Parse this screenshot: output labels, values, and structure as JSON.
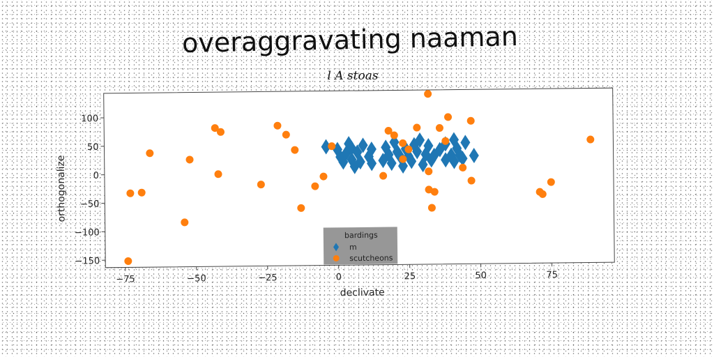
{
  "chart_data": {
    "type": "scatter",
    "title": "overaggravating naaman",
    "subtitle": "l A stoas",
    "xlabel": "declivate",
    "ylabel": "orthogonalize",
    "xlim": [
      -82,
      97
    ],
    "ylim": [
      -163,
      143
    ],
    "xticks": [
      -75,
      -50,
      -25,
      0,
      25,
      50,
      75
    ],
    "yticks": [
      100,
      50,
      0,
      -50,
      -100,
      -150
    ],
    "grid": false,
    "legend": {
      "title": "bardings",
      "placement": "lower-center"
    },
    "colors": {
      "m": "#1f77b4",
      "scutcheons": "#ff7f0e",
      "legend_bg": "#8c8c8c"
    },
    "series": [
      {
        "name": "m",
        "marker": "diamond",
        "color": "#1f77b4",
        "points": [
          [
            -4,
            45
          ],
          [
            0,
            40
          ],
          [
            1,
            27
          ],
          [
            2,
            18
          ],
          [
            3,
            33
          ],
          [
            4,
            50
          ],
          [
            5,
            42
          ],
          [
            5,
            22
          ],
          [
            6,
            10
          ],
          [
            7,
            35
          ],
          [
            8,
            18
          ],
          [
            9,
            47
          ],
          [
            11,
            27
          ],
          [
            12,
            15
          ],
          [
            12,
            40
          ],
          [
            17,
            43
          ],
          [
            16,
            20
          ],
          [
            18,
            30
          ],
          [
            19,
            15
          ],
          [
            20,
            52
          ],
          [
            21,
            35
          ],
          [
            22,
            27
          ],
          [
            23,
            10
          ],
          [
            24,
            40
          ],
          [
            25,
            27
          ],
          [
            26,
            18
          ],
          [
            27,
            47
          ],
          [
            28,
            35
          ],
          [
            29,
            55
          ],
          [
            30,
            12
          ],
          [
            31,
            30
          ],
          [
            32,
            45
          ],
          [
            33,
            20
          ],
          [
            34,
            28
          ],
          [
            36,
            38
          ],
          [
            38,
            20
          ],
          [
            38,
            48
          ],
          [
            40,
            28
          ],
          [
            41,
            55
          ],
          [
            41,
            17
          ],
          [
            42,
            40
          ],
          [
            43,
            28
          ],
          [
            44,
            22
          ],
          [
            45,
            50
          ],
          [
            48,
            27
          ]
        ]
      },
      {
        "name": "scutcheons",
        "marker": "circle",
        "color": "#ff7f0e",
        "points": [
          [
            -74,
            -152
          ],
          [
            -73,
            -33
          ],
          [
            -69,
            -32
          ],
          [
            -66,
            37
          ],
          [
            -54,
            -85
          ],
          [
            -52,
            25
          ],
          [
            -43,
            80
          ],
          [
            -41,
            73
          ],
          [
            -42,
            -1
          ],
          [
            -27,
            -20
          ],
          [
            -21,
            83
          ],
          [
            -18,
            67
          ],
          [
            -15,
            40
          ],
          [
            -13,
            -62
          ],
          [
            -8,
            -24
          ],
          [
            -5,
            -7
          ],
          [
            -2,
            46
          ],
          [
            16,
            -7
          ],
          [
            18,
            72
          ],
          [
            20,
            64
          ],
          [
            23,
            50
          ],
          [
            23,
            22
          ],
          [
            25,
            39
          ],
          [
            28,
            77
          ],
          [
            32,
            136
          ],
          [
            32,
            0
          ],
          [
            32,
            -32
          ],
          [
            33,
            -64
          ],
          [
            34,
            -36
          ],
          [
            36,
            76
          ],
          [
            38,
            53
          ],
          [
            39,
            95
          ],
          [
            44,
            6
          ],
          [
            47,
            88
          ],
          [
            47,
            -17
          ],
          [
            71,
            -38
          ],
          [
            72,
            -42
          ],
          [
            75,
            -21
          ],
          [
            89,
            53
          ]
        ]
      }
    ]
  }
}
